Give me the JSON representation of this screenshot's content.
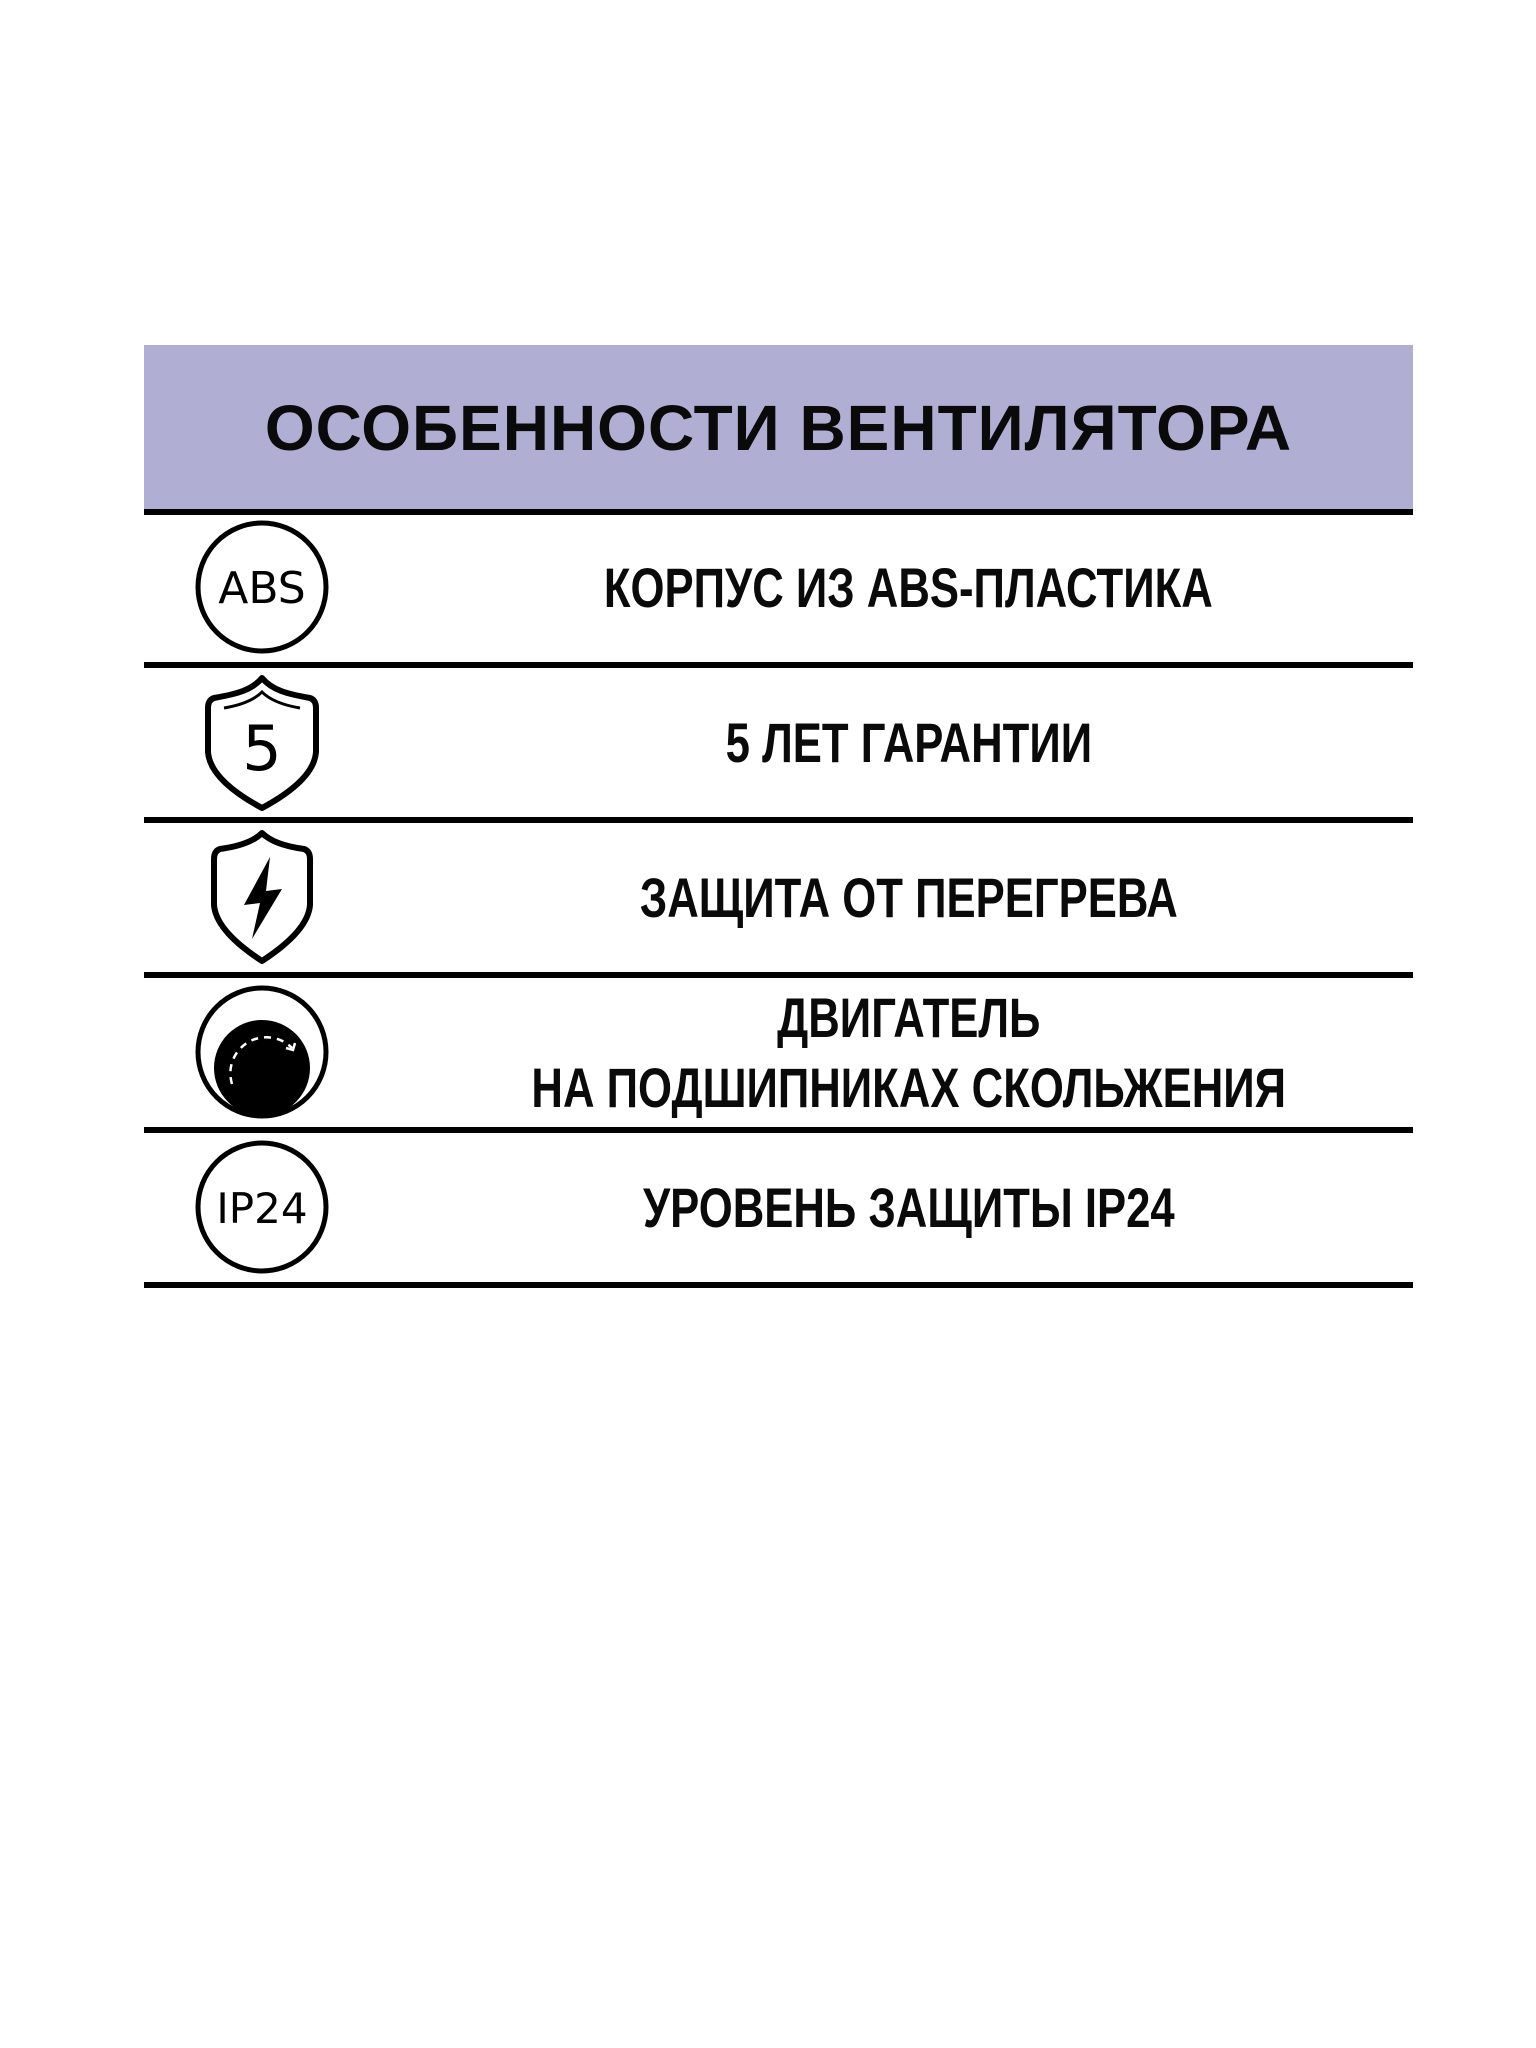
{
  "header": {
    "title": "ОСОБЕННОСТИ ВЕНТИЛЯТОРА",
    "background": "#b1aed3"
  },
  "features": [
    {
      "icon": "abs-circle-icon",
      "icon_text": "ABS",
      "label": "КОРПУС ИЗ ABS-ПЛАСТИКА"
    },
    {
      "icon": "shield-5-icon",
      "icon_text": "5",
      "label": "5 ЛЕТ ГАРАНТИИ"
    },
    {
      "icon": "shield-lightning-icon",
      "label": "ЗАЩИТА ОТ ПЕРЕГРЕВА"
    },
    {
      "icon": "bearing-icon",
      "label_line1": "ДВИГАТЕЛЬ",
      "label_line2": "НА ПОДШИПНИКАХ СКОЛЬЖЕНИЯ"
    },
    {
      "icon": "ip24-circle-icon",
      "icon_text": "IP24",
      "label": "УРОВЕНЬ ЗАЩИТЫ IP24"
    }
  ]
}
